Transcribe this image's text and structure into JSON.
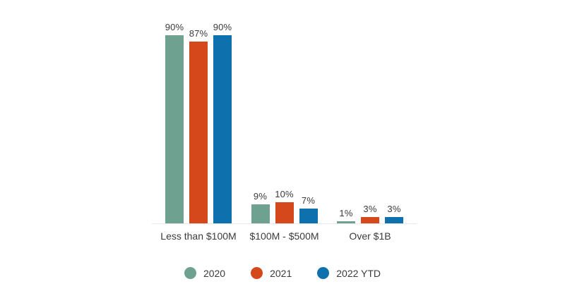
{
  "chart_data": {
    "type": "bar",
    "title": "",
    "categories": [
      "Less than $100M",
      "$100M - $500M",
      "Over $1B"
    ],
    "series": [
      {
        "name": "2020",
        "color": "#6fa191",
        "values": [
          90,
          9,
          1
        ],
        "labels": [
          "90%",
          "9%",
          "1%"
        ]
      },
      {
        "name": "2021",
        "color": "#d4481c",
        "values": [
          87,
          10,
          3
        ],
        "labels": [
          "87%",
          "10%",
          "3%"
        ]
      },
      {
        "name": "2022 YTD",
        "color": "#0e70ad",
        "values": [
          90,
          7,
          3
        ],
        "labels": [
          "90%",
          "7%",
          "3%"
        ]
      }
    ],
    "xlabel": "",
    "ylabel": "",
    "ylim": [
      0,
      90
    ],
    "value_labels_shown": true,
    "grid": false,
    "legend_position": "bottom-center",
    "axis_line_color": "#e9e9e9",
    "text_color": "#3b3b3b",
    "background_color": "#ffffff"
  }
}
